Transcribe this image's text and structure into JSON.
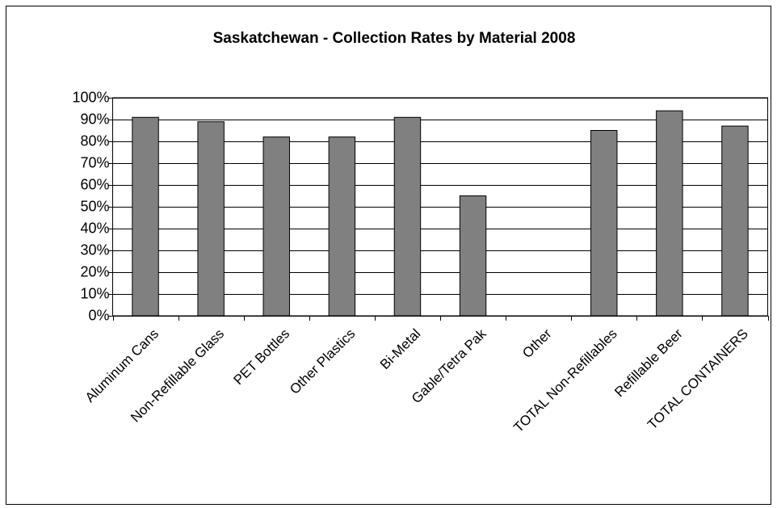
{
  "chart_data": {
    "type": "bar",
    "title": "Saskatchewan - Collection Rates by Material 2008",
    "categories": [
      "Aluminum Cans",
      "Non-Refillable Glass",
      "PET Bottles",
      "Other Plastics",
      "Bi-Metal",
      "Gable/Tetra Pak",
      "Other",
      "TOTAL Non-Refillables",
      "Refillable Beer",
      "TOTAL CONTAINERS"
    ],
    "values": [
      91,
      89,
      82,
      82,
      91,
      55,
      0,
      85,
      94,
      87
    ],
    "color": "#808080",
    "ylim": [
      0,
      100
    ],
    "yticks": [
      {
        "value": 0,
        "label": "0%"
      },
      {
        "value": 10,
        "label": "10%"
      },
      {
        "value": 20,
        "label": "20%"
      },
      {
        "value": 30,
        "label": "30%"
      },
      {
        "value": 40,
        "label": "40%"
      },
      {
        "value": 50,
        "label": "50%"
      },
      {
        "value": 60,
        "label": "60%"
      },
      {
        "value": 70,
        "label": "70%"
      },
      {
        "value": 80,
        "label": "80%"
      },
      {
        "value": 90,
        "label": "90%"
      },
      {
        "value": 100,
        "label": "100%"
      }
    ],
    "grid": true
  }
}
